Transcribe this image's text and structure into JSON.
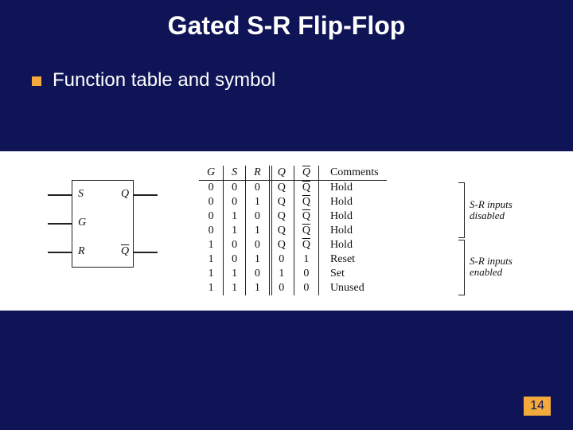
{
  "title": "Gated S-R Flip-Flop",
  "bullet": "Function table and symbol",
  "symbol": {
    "S": "S",
    "G": "G",
    "R": "R",
    "Q": "Q",
    "Qbar": "Q"
  },
  "table": {
    "headers": {
      "G": "G",
      "S": "S",
      "R": "R",
      "Q": "Q",
      "Qbar": "Q",
      "Comments": "Comments"
    },
    "rows": [
      {
        "G": "0",
        "S": "0",
        "R": "0",
        "Q": "Q",
        "Qb": "Q",
        "Qb_bar": true,
        "C": "Hold"
      },
      {
        "G": "0",
        "S": "0",
        "R": "1",
        "Q": "Q",
        "Qb": "Q",
        "Qb_bar": true,
        "C": "Hold"
      },
      {
        "G": "0",
        "S": "1",
        "R": "0",
        "Q": "Q",
        "Qb": "Q",
        "Qb_bar": true,
        "C": "Hold"
      },
      {
        "G": "0",
        "S": "1",
        "R": "1",
        "Q": "Q",
        "Qb": "Q",
        "Qb_bar": true,
        "C": "Hold"
      },
      {
        "G": "1",
        "S": "0",
        "R": "0",
        "Q": "Q",
        "Qb": "Q",
        "Qb_bar": true,
        "C": "Hold"
      },
      {
        "G": "1",
        "S": "0",
        "R": "1",
        "Q": "0",
        "Qb": "1",
        "Qb_bar": false,
        "C": "Reset"
      },
      {
        "G": "1",
        "S": "1",
        "R": "0",
        "Q": "1",
        "Qb": "0",
        "Qb_bar": false,
        "C": "Set"
      },
      {
        "G": "1",
        "S": "1",
        "R": "1",
        "Q": "0",
        "Qb": "0",
        "Qb_bar": false,
        "C": "Unused"
      }
    ]
  },
  "brackets": {
    "disabled": "S-R inputs\ndisabled",
    "enabled": "S-R inputs\nenabled"
  },
  "pageNumber": "14",
  "colors": {
    "background": "#0e1456",
    "accent": "#f3a93b",
    "textLight": "#ffffff",
    "figureBg": "#ffffff",
    "figureLine": "#222222"
  }
}
